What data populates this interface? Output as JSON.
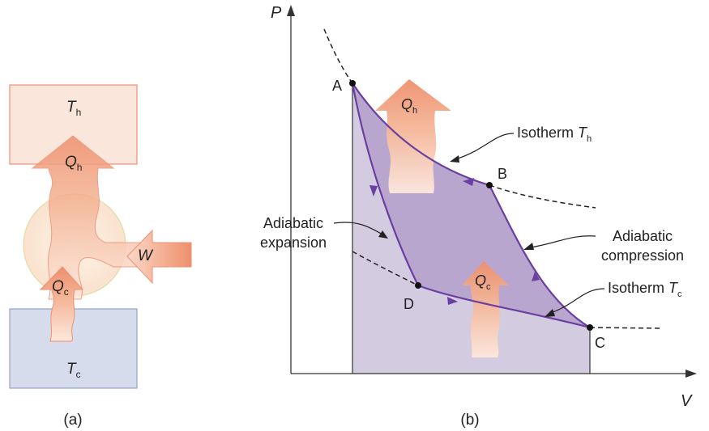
{
  "panel_a": {
    "caption": "(a)",
    "hot_reservoir": {
      "symbol": "T",
      "sub": "h"
    },
    "cold_reservoir": {
      "symbol": "T",
      "sub": "c"
    },
    "heat_out": {
      "symbol": "Q",
      "sub": "h"
    },
    "heat_in": {
      "symbol": "Q",
      "sub": "c"
    },
    "work": "W"
  },
  "panel_b": {
    "caption": "(b)",
    "y_axis": "P",
    "x_axis": "V",
    "points": [
      "A",
      "B",
      "C",
      "D"
    ],
    "heat_out": {
      "symbol": "Q",
      "sub": "h"
    },
    "heat_in": {
      "symbol": "Q",
      "sub": "c"
    },
    "labels": {
      "isotherm_h": {
        "text": "Isotherm ",
        "symbol": "T",
        "sub": "h"
      },
      "isotherm_c": {
        "text": "Isotherm ",
        "symbol": "T",
        "sub": "c"
      },
      "adiabatic_expansion": [
        "Adiabatic",
        "expansion"
      ],
      "adiabatic_compression": [
        "Adiabatic",
        "compression"
      ]
    }
  },
  "colors": {
    "cycle": "#6a3fa0",
    "cycle_fill": "#b9a6cf",
    "area_fill": "#d3cbe0",
    "heat_arrow": "#ef9a78",
    "hot_box": "#fbe6dc",
    "cold_box": "#d7dcec"
  }
}
